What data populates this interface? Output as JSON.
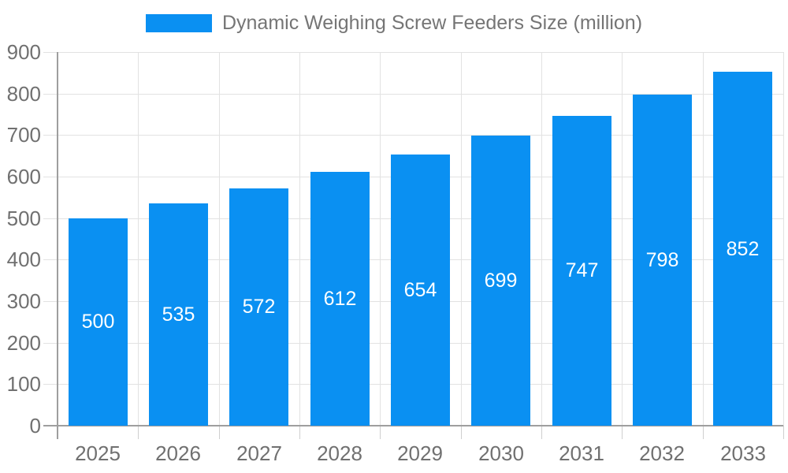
{
  "chart_data": {
    "type": "bar",
    "title": "Dynamic Weighing Screw Feeders Size (million)",
    "categories": [
      "2025",
      "2026",
      "2027",
      "2028",
      "2029",
      "2030",
      "2031",
      "2032",
      "2033"
    ],
    "values": [
      500,
      535,
      572,
      612,
      654,
      699,
      747,
      798,
      852
    ],
    "xlabel": "",
    "ylabel": "",
    "ylim": [
      0,
      900
    ],
    "ytick_step": 100,
    "grid": true,
    "legend_position": "top",
    "bar_color": "#0a90f2",
    "value_label_color": "#ffffff",
    "axis_color": "#9e9e9e",
    "gridline_color": "#e2e2e2",
    "text_color": "#707070"
  }
}
